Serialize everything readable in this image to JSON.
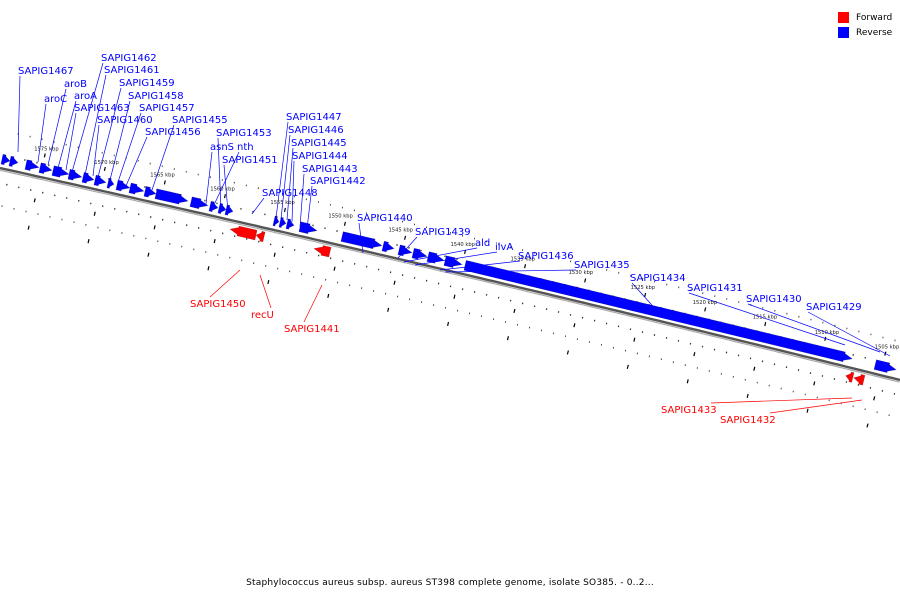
{
  "legend": [
    {
      "label": "Forward",
      "color": "#ff0000"
    },
    {
      "label": "Reverse",
      "color": "#0000ff"
    }
  ],
  "caption": "Staphylococcus aureus subsp. aureus ST398 complete genome, isolate SO385. - 0..2...",
  "colors": {
    "forward": "#ff0000",
    "reverse": "#0000ff",
    "backbone": "#666666"
  },
  "axis": {
    "unit": "kbp",
    "tick_labels": [
      "1575 kbp",
      "1570 kbp",
      "1565 kbp",
      "1560 kbp",
      "1555 kbp",
      "1550 kbp",
      "1545 kbp",
      "1540 kbp",
      "1535 kbp",
      "1530 kbp",
      "1525 kbp",
      "1520 kbp",
      "1515 kbp",
      "1510 kbp",
      "1505 kbp"
    ]
  },
  "genes": {
    "reverse": [
      "SAPIG1467",
      "aroC",
      "aroB",
      "aroA",
      "SAPIG1463",
      "SAPIG1462",
      "SAPIG1461",
      "SAPIG1460",
      "SAPIG1459",
      "SAPIG1458",
      "SAPIG1457",
      "SAPIG1456",
      "SAPIG1455",
      "asnS",
      "nth",
      "SAPIG1453",
      "SAPIG1451",
      "SAPIG1448",
      "SAPIG1447",
      "SAPIG1446",
      "SAPIG1445",
      "SAPIG1444",
      "SAPIG1443",
      "SAPIG1442",
      "SAPIG1440",
      "SAPIG1439",
      "ald",
      "ilvA",
      "SAPIG1436",
      "SAPIG1435",
      "SAPIG1434",
      "SAPIG1431",
      "SAPIG1430",
      "SAPIG1429"
    ],
    "forward": [
      "SAPIG1450",
      "recU",
      "SAPIG1441",
      "SAPIG1433",
      "SAPIG1432"
    ]
  }
}
